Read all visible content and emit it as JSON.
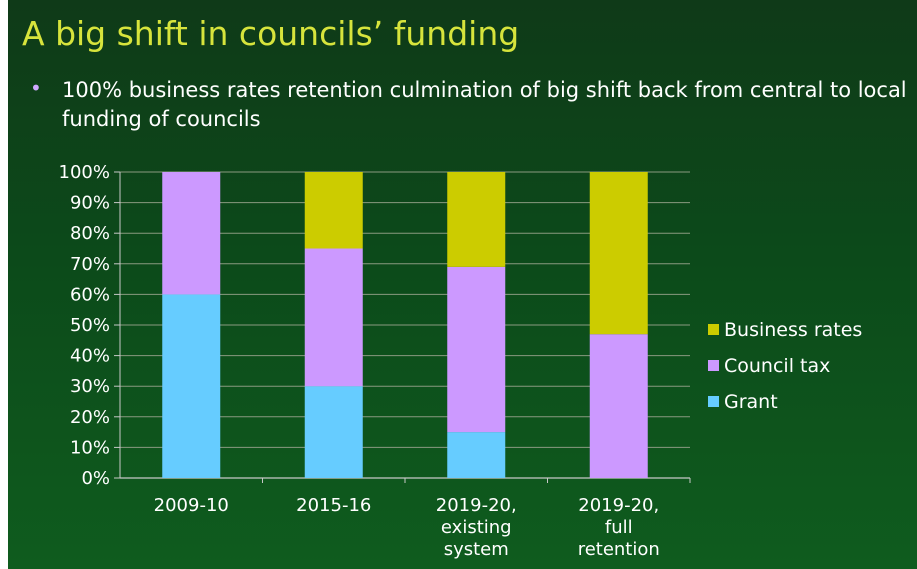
{
  "slide": {
    "title": "A big shift in councils’ funding",
    "bullet": "100% business rates retention culmination of big shift back from central to local funding of councils",
    "bullet_color": "#cfa9ff",
    "title_color": "#d7e43c"
  },
  "chart_data": {
    "type": "bar",
    "stacked": true,
    "categories": [
      [
        "2009-10"
      ],
      [
        "2015-16"
      ],
      [
        "2019-20,",
        "existing",
        "system"
      ],
      [
        "2019-20,",
        "full",
        "retention"
      ]
    ],
    "series": [
      {
        "name": "Grant",
        "color": "#66ccff",
        "values": [
          60,
          30,
          15,
          0
        ]
      },
      {
        "name": "Council tax",
        "color": "#cc99ff",
        "values": [
          40,
          45,
          54,
          47
        ]
      },
      {
        "name": "Business rates",
        "color": "#cccc00",
        "values": [
          0,
          25,
          31,
          53
        ]
      }
    ],
    "ylim": [
      0,
      100
    ],
    "y_ticks": [
      "0%",
      "10%",
      "20%",
      "30%",
      "40%",
      "50%",
      "60%",
      "70%",
      "80%",
      "90%",
      "100%"
    ],
    "gridlines": true,
    "legend_position": "right",
    "legend_order": [
      "Business rates",
      "Council tax",
      "Grant"
    ]
  }
}
